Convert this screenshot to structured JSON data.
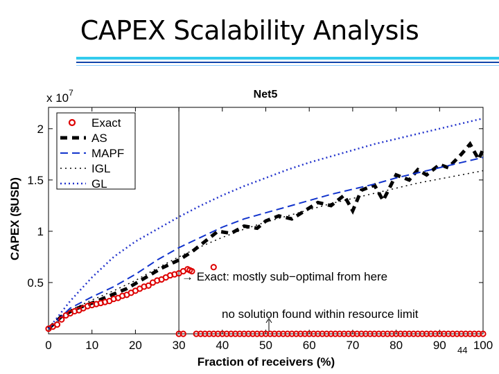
{
  "slide": {
    "title": "CAPEX Scalability Analysis",
    "page_number": "44",
    "accent_colors": [
      "#33ccee",
      "#1144aa",
      "#88ccff"
    ]
  },
  "chart_data": {
    "type": "line",
    "title": "Net5",
    "xlabel": "Fraction of receivers (%)",
    "ylabel": "CAPEX ($USD)",
    "y_scale_label": "x 10",
    "y_scale_exponent": "7",
    "xlim": [
      0,
      100
    ],
    "ylim": [
      0,
      2.1
    ],
    "x_ticks": [
      0,
      10,
      20,
      30,
      40,
      50,
      60,
      70,
      80,
      90,
      100
    ],
    "x_tick_labels": [
      "0",
      "10",
      "20",
      "30",
      "40",
      "50",
      "60",
      "70",
      "80",
      "90",
      "100"
    ],
    "y_ticks": [
      0.5,
      1,
      1.5,
      2
    ],
    "y_tick_labels": [
      "0.5",
      "1",
      "1.5",
      "2"
    ],
    "legend_position": "top-left",
    "grid": false,
    "annotations": [
      {
        "text": "→ Exact: mostly sub−optimal from here"
      },
      {
        "text": "no solution found within resource limit"
      }
    ],
    "series": [
      {
        "name": "Exact",
        "style": "circles",
        "color": "#dd0000",
        "x": [
          0,
          1,
          2,
          3,
          4,
          5,
          6,
          7,
          8,
          9,
          10,
          11,
          12,
          13,
          14,
          15,
          16,
          17,
          18,
          19,
          20,
          21,
          22,
          23,
          24,
          25,
          26,
          27,
          28,
          29,
          30,
          31,
          32,
          32.5,
          33,
          38
        ],
        "y": [
          0.05,
          0.07,
          0.09,
          0.14,
          0.18,
          0.2,
          0.22,
          0.23,
          0.25,
          0.27,
          0.28,
          0.29,
          0.3,
          0.31,
          0.32,
          0.34,
          0.35,
          0.37,
          0.38,
          0.4,
          0.42,
          0.44,
          0.46,
          0.47,
          0.5,
          0.52,
          0.53,
          0.55,
          0.57,
          0.58,
          0.59,
          0.61,
          0.63,
          0.62,
          0.61,
          0.65
        ]
      },
      {
        "name": "AS",
        "style": "dashed-thick",
        "color": "#000000",
        "x": [
          0,
          3,
          6,
          10,
          14,
          18,
          22,
          26,
          30,
          33,
          36,
          39,
          42,
          45,
          48,
          50,
          53,
          56,
          59,
          62,
          65,
          68,
          70,
          72,
          75,
          77,
          80,
          83,
          85,
          87,
          90,
          92,
          95,
          97,
          99,
          100
        ],
        "y": [
          0.05,
          0.17,
          0.24,
          0.3,
          0.37,
          0.44,
          0.54,
          0.64,
          0.72,
          0.8,
          0.9,
          1.0,
          0.98,
          1.05,
          1.03,
          1.1,
          1.15,
          1.12,
          1.2,
          1.28,
          1.25,
          1.35,
          1.2,
          1.4,
          1.45,
          1.3,
          1.55,
          1.5,
          1.6,
          1.55,
          1.65,
          1.62,
          1.75,
          1.85,
          1.7,
          1.8
        ]
      },
      {
        "name": "MAPF",
        "style": "dashed",
        "color": "#1133cc",
        "x": [
          0,
          5,
          10,
          15,
          20,
          25,
          30,
          35,
          40,
          45,
          50,
          55,
          60,
          65,
          70,
          75,
          80,
          85,
          90,
          95,
          100
        ],
        "y": [
          0.05,
          0.25,
          0.36,
          0.46,
          0.58,
          0.72,
          0.84,
          0.94,
          1.04,
          1.12,
          1.18,
          1.24,
          1.3,
          1.36,
          1.41,
          1.46,
          1.52,
          1.57,
          1.62,
          1.67,
          1.72
        ]
      },
      {
        "name": "IGL",
        "style": "dotted",
        "color": "#000000",
        "x": [
          0,
          5,
          10,
          15,
          20,
          25,
          30,
          35,
          40,
          45,
          50,
          55,
          60,
          65,
          70,
          75,
          80,
          85,
          90,
          95,
          100
        ],
        "y": [
          0.05,
          0.23,
          0.33,
          0.42,
          0.52,
          0.64,
          0.75,
          0.85,
          0.94,
          1.02,
          1.09,
          1.15,
          1.21,
          1.27,
          1.32,
          1.37,
          1.42,
          1.47,
          1.51,
          1.55,
          1.59
        ]
      },
      {
        "name": "GL",
        "style": "dotted-thick",
        "color": "#2233cc",
        "x": [
          0,
          5,
          10,
          15,
          20,
          25,
          30,
          35,
          40,
          45,
          50,
          55,
          60,
          65,
          70,
          75,
          80,
          85,
          90,
          95,
          100
        ],
        "y": [
          0.05,
          0.32,
          0.55,
          0.75,
          0.9,
          1.02,
          1.14,
          1.25,
          1.35,
          1.44,
          1.52,
          1.6,
          1.67,
          1.73,
          1.79,
          1.85,
          1.9,
          1.95,
          2.0,
          2.05,
          2.1
        ]
      },
      {
        "name": "Exact (no solution)",
        "style": "circles",
        "color": "#dd0000",
        "x": [
          30,
          31,
          34,
          35,
          36,
          37,
          38,
          39,
          40,
          41,
          42,
          43,
          44,
          45,
          46,
          47,
          48,
          49,
          50,
          51,
          52,
          53,
          54,
          55,
          56,
          57,
          58,
          59,
          60,
          61,
          62,
          63,
          64,
          65,
          66,
          67,
          68,
          69,
          70,
          71,
          72,
          73,
          74,
          75,
          76,
          77,
          78,
          79,
          80,
          81,
          82,
          83,
          84,
          85,
          86,
          87,
          88,
          89,
          90,
          91,
          92,
          93,
          94,
          95,
          96,
          97,
          98,
          99,
          100
        ],
        "y": [
          0,
          0,
          0,
          0,
          0,
          0,
          0,
          0,
          0,
          0,
          0,
          0,
          0,
          0,
          0,
          0,
          0,
          0,
          0,
          0,
          0,
          0,
          0,
          0,
          0,
          0,
          0,
          0,
          0,
          0,
          0,
          0,
          0,
          0,
          0,
          0,
          0,
          0,
          0,
          0,
          0,
          0,
          0,
          0,
          0,
          0,
          0,
          0,
          0,
          0,
          0,
          0,
          0,
          0,
          0,
          0,
          0,
          0,
          0,
          0,
          0,
          0,
          0,
          0,
          0,
          0,
          0,
          0,
          0
        ]
      }
    ]
  }
}
